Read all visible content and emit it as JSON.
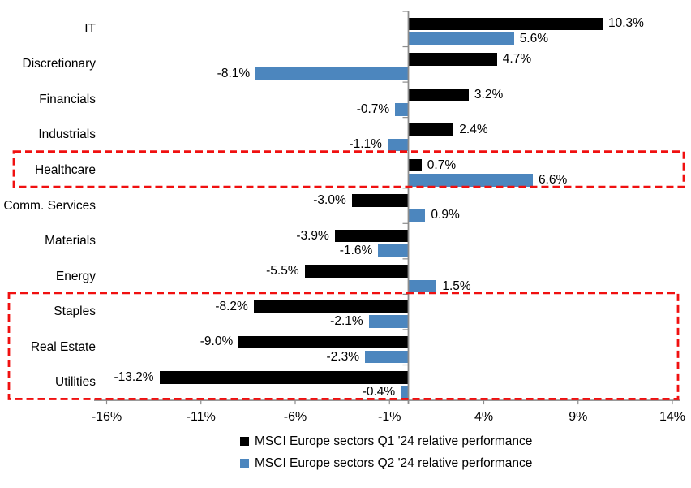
{
  "chart_data": {
    "type": "bar",
    "orientation": "horizontal",
    "title": "",
    "xlabel": "",
    "ylabel": "",
    "grid": false,
    "legend_position": "bottom",
    "categories": [
      "IT",
      "Discretionary",
      "Financials",
      "Industrials",
      "Healthcare",
      "Comm. Services",
      "Materials",
      "Energy",
      "Staples",
      "Real Estate",
      "Utilities"
    ],
    "series": [
      {
        "name": "MSCI Europe sectors Q1 '24 relative performance",
        "color": "#000000",
        "values": [
          10.3,
          4.7,
          3.2,
          2.4,
          0.7,
          -3.0,
          -3.9,
          -5.5,
          -8.2,
          -9.0,
          -13.2
        ]
      },
      {
        "name": "MSCI Europe sectors Q2 '24 relative performance",
        "color": "#4C86BE",
        "values": [
          5.6,
          -8.1,
          -0.7,
          -1.1,
          6.6,
          0.9,
          -1.6,
          1.5,
          -2.1,
          -2.3,
          -0.4
        ]
      }
    ],
    "value_labels": {
      "series_0": [
        "10.3%",
        "4.7%",
        "3.2%",
        "2.4%",
        "0.7%",
        "-3.0%",
        "-3.9%",
        "-5.5%",
        "-8.2%",
        "-9.0%",
        "-13.2%"
      ],
      "series_1": [
        "5.6%",
        "-8.1%",
        "-0.7%",
        "-1.1%",
        "6.6%",
        "0.9%",
        "-1.6%",
        "1.5%",
        "-2.1%",
        "-2.3%",
        "-0.4%"
      ]
    },
    "x_axis": {
      "tick_values": [
        -16,
        -11,
        -6,
        -1,
        4,
        9,
        14
      ],
      "tick_labels": [
        "-16%",
        "-11%",
        "-6%",
        "-1%",
        "4%",
        "9%",
        "14%"
      ],
      "range": [
        -16.7,
        14.4
      ],
      "axis_color": "#8C8C8C"
    },
    "highlights": [
      {
        "rows": [
          "Healthcare"
        ],
        "style": "dashed",
        "color": "#F01010"
      },
      {
        "rows": [
          "Staples",
          "Real Estate",
          "Utilities"
        ],
        "style": "dashed",
        "color": "#F01010"
      }
    ]
  }
}
